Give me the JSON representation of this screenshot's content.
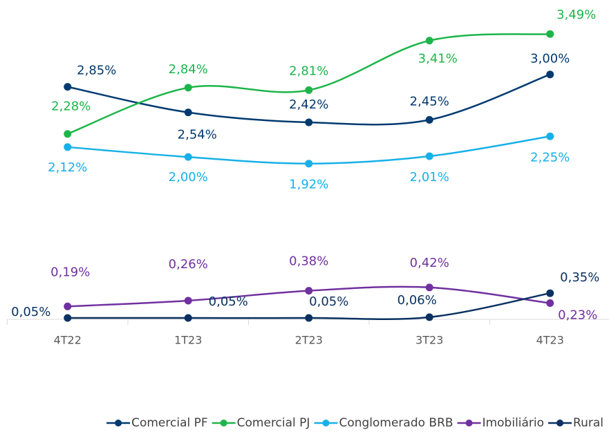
{
  "chart_data": {
    "type": "line",
    "categories": [
      "4T22",
      "1T23",
      "2T23",
      "3T23",
      "4T23"
    ],
    "ylim": [
      0,
      3.5
    ],
    "series": [
      {
        "name": "Comercial PF",
        "color": "#003a70",
        "values": [
          2.85,
          2.54,
          2.42,
          2.45,
          3.0
        ],
        "value_labels": [
          "2,85%",
          "2,54%",
          "2,42%",
          "2,45%",
          "3,00%"
        ]
      },
      {
        "name": "Comercial PJ",
        "color": "#1db54a",
        "values": [
          2.28,
          2.84,
          2.81,
          3.41,
          3.49
        ],
        "value_labels": [
          "2,28%",
          "2,84%",
          "2,81%",
          "3,41%",
          "3,49%"
        ]
      },
      {
        "name": "Conglomerado BRB",
        "color": "#17b0e8",
        "values": [
          2.12,
          2.0,
          1.92,
          2.01,
          2.25
        ],
        "value_labels": [
          "2,12%",
          "2,00%",
          "1,92%",
          "2,01%",
          "2,25%"
        ]
      },
      {
        "name": "Imobiliário",
        "color": "#7030a0",
        "values": [
          0.19,
          0.26,
          0.38,
          0.42,
          0.23
        ],
        "value_labels": [
          "0,19%",
          "0,26%",
          "0,38%",
          "0,42%",
          "0,23%"
        ]
      },
      {
        "name": "Rural",
        "color": "#0a3161",
        "values": [
          0.05,
          0.05,
          0.05,
          0.06,
          0.35
        ],
        "value_labels": [
          "0,05%",
          "0,05%",
          "0,05%",
          "0,06%",
          "0,35%"
        ]
      }
    ],
    "legend": "bottom"
  }
}
